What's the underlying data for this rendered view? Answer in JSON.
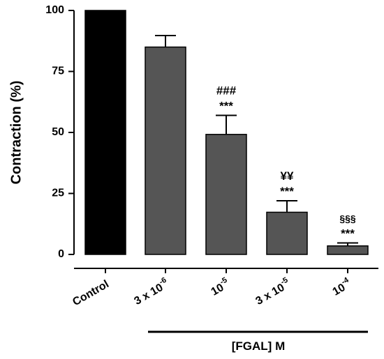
{
  "chart_data": {
    "type": "bar",
    "ylabel": "Contraction (%)",
    "ylim": [
      0,
      100
    ],
    "yticks": [
      "0",
      "25",
      "50",
      "75",
      "100"
    ],
    "categories": [
      {
        "base": "Control",
        "sup": ""
      },
      {
        "base": "3 x 10",
        "sup": "-6"
      },
      {
        "base": "10",
        "sup": "-5"
      },
      {
        "base": "3 x 10",
        "sup": "-5"
      },
      {
        "base": "10",
        "sup": "-4"
      }
    ],
    "values": [
      100,
      85,
      49.2,
      17.3,
      3.5
    ],
    "errors": [
      0,
      4.7,
      7.8,
      4.7,
      1.2
    ],
    "bar_colors": [
      "#000000",
      "#555555",
      "#555555",
      "#555555",
      "#555555"
    ],
    "annotations": [
      {
        "bar": 2,
        "lines": [
          "###",
          "***"
        ]
      },
      {
        "bar": 3,
        "lines": [
          "¥¥",
          "***"
        ]
      },
      {
        "bar": 4,
        "lines": [
          "§§§",
          "***"
        ]
      }
    ],
    "group_label": "[FGAL] M",
    "grid": false,
    "legend": "none"
  }
}
